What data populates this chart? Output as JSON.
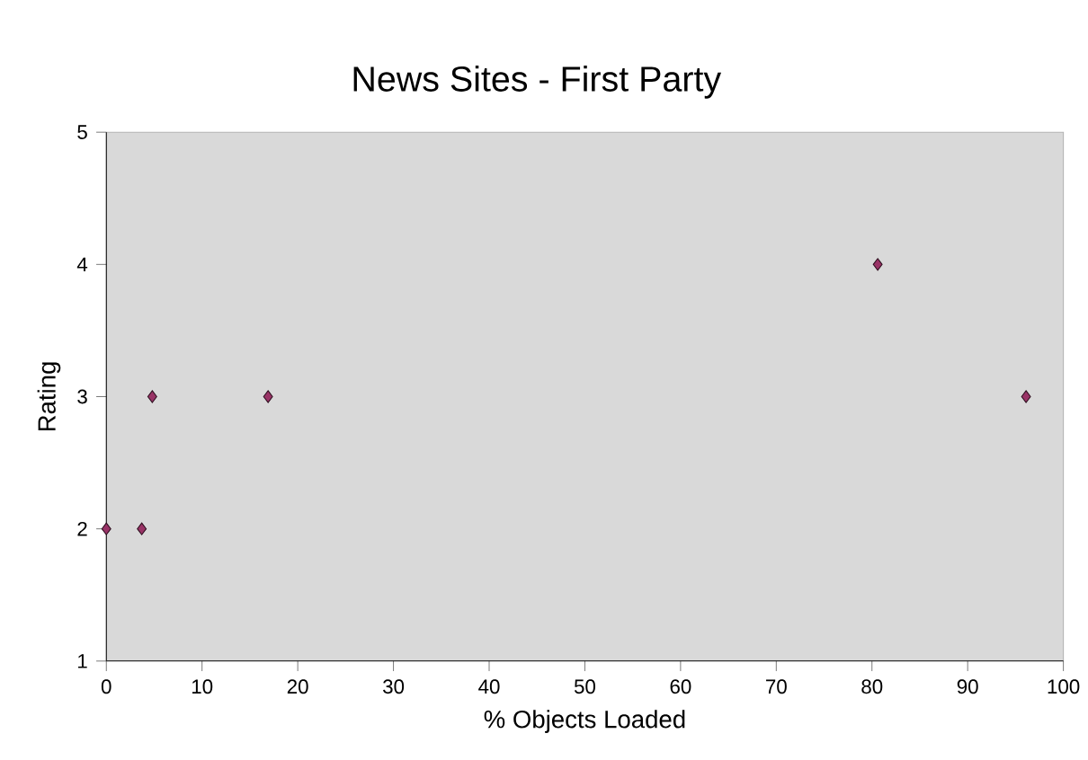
{
  "chart_data": {
    "type": "scatter",
    "title": "News Sites - First Party",
    "xlabel": "% Objects Loaded",
    "ylabel": "Rating",
    "x": [
      0,
      3.7,
      4.8,
      16.9,
      80.6,
      96.1
    ],
    "values": [
      2,
      2,
      3,
      3,
      4,
      3
    ],
    "color": "#993366",
    "marker": "diamond",
    "xlim": [
      0,
      100
    ],
    "ylim": [
      1,
      5
    ],
    "xticks": [
      0,
      10,
      20,
      30,
      40,
      50,
      60,
      70,
      80,
      90,
      100
    ],
    "yticks": [
      1,
      2,
      3,
      4,
      5
    ]
  }
}
